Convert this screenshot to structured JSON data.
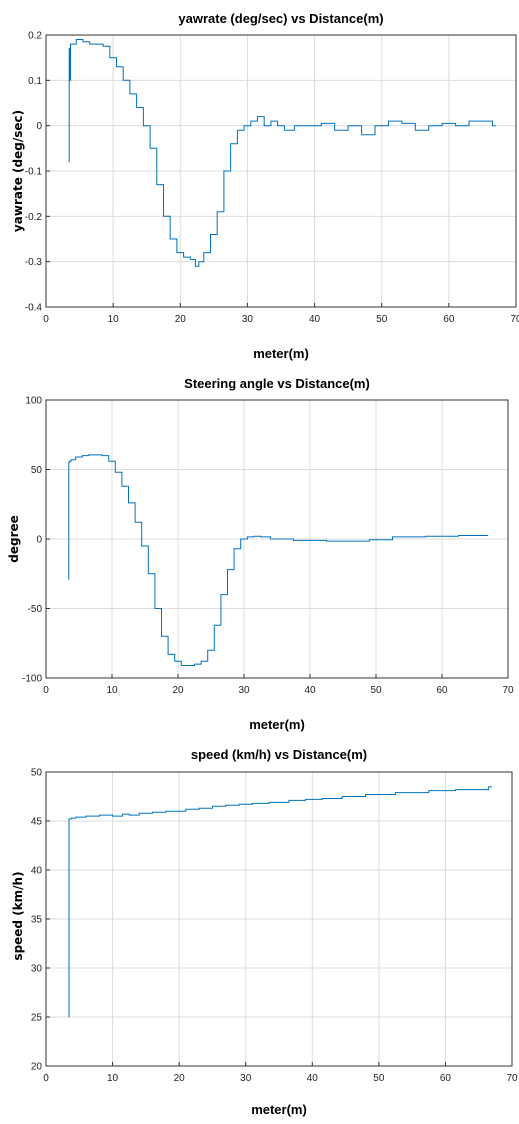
{
  "chart_data": [
    {
      "type": "line",
      "title": "yawrate (deg/sec) vs Distance(m)",
      "xlabel": "meter(m)",
      "ylabel": "yawrate (deg/sec)",
      "xlim": [
        0,
        70
      ],
      "ylim": [
        -0.4,
        0.2
      ],
      "xticks": [
        0,
        10,
        20,
        30,
        40,
        50,
        60,
        70
      ],
      "yticks": [
        -0.4,
        -0.3,
        -0.2,
        -0.1,
        0,
        0.1,
        0.2
      ],
      "grid": true,
      "color": "#0072BD",
      "series": [
        {
          "x": [
            3.4,
            3.5,
            3.6,
            3.7,
            4.0,
            5.0,
            6.0,
            7.0,
            8.0,
            9.0,
            10.0,
            11.0,
            12.0,
            13.0,
            14.0,
            15.0,
            16.0,
            17.0,
            18.0,
            19.0,
            20.0,
            21.0,
            22.0,
            22.5,
            23.0,
            24.0,
            25.0,
            26.0,
            27.0,
            28.0,
            29.0,
            30.0,
            31.0,
            32.0,
            33.0,
            34.0,
            35.0,
            36.0,
            38.0,
            40.0,
            42.0,
            44.0,
            46.0,
            48.0,
            50.0,
            52.0,
            54.0,
            56.0,
            58.0,
            60.0,
            62.0,
            64.0,
            66.0,
            67.0
          ],
          "y": [
            -0.08,
            0.17,
            0.1,
            0.18,
            0.18,
            0.19,
            0.185,
            0.18,
            0.18,
            0.175,
            0.15,
            0.13,
            0.1,
            0.07,
            0.04,
            0.0,
            -0.05,
            -0.13,
            -0.2,
            -0.25,
            -0.28,
            -0.29,
            -0.295,
            -0.31,
            -0.3,
            -0.28,
            -0.24,
            -0.19,
            -0.1,
            -0.04,
            -0.01,
            0.0,
            0.01,
            0.02,
            0.0,
            0.01,
            0.0,
            -0.01,
            0.0,
            0.0,
            0.005,
            -0.01,
            0.0,
            -0.02,
            0.0,
            0.01,
            0.005,
            -0.01,
            0.0,
            0.005,
            0.0,
            0.01,
            0.01,
            0.0
          ]
        }
      ]
    },
    {
      "type": "line",
      "title": "Steering angle vs Distance(m)",
      "xlabel": "meter(m)",
      "ylabel": "degree",
      "xlim": [
        0,
        70
      ],
      "ylim": [
        -100,
        100
      ],
      "xticks": [
        0,
        10,
        20,
        30,
        40,
        50,
        60,
        70
      ],
      "yticks": [
        -100,
        -50,
        0,
        50,
        100
      ],
      "grid": true,
      "color": "#0072BD",
      "series": [
        {
          "x": [
            3.4,
            3.5,
            3.6,
            4.0,
            5.0,
            6.0,
            7.0,
            8.0,
            9.0,
            10.0,
            11.0,
            12.0,
            13.0,
            14.0,
            15.0,
            16.0,
            17.0,
            18.0,
            19.0,
            20.0,
            21.0,
            22.0,
            23.0,
            24.0,
            25.0,
            26.0,
            27.0,
            28.0,
            29.0,
            30.0,
            31.0,
            32.0,
            33.0,
            35.0,
            40.0,
            45.0,
            48.0,
            50.0,
            55.0,
            60.0,
            65.0,
            67.0
          ],
          "y": [
            -29,
            55,
            56,
            57,
            59,
            60,
            60.5,
            60.5,
            60,
            56,
            48,
            38,
            26,
            12,
            -5,
            -25,
            -50,
            -70,
            -83,
            -88,
            -91,
            -91,
            -90,
            -88,
            -80,
            -62,
            -40,
            -22,
            -7,
            0,
            1.5,
            2,
            1.5,
            0,
            -1,
            -1.5,
            -1.5,
            -0.5,
            1.5,
            2,
            2.5,
            2.5
          ]
        }
      ]
    },
    {
      "type": "line",
      "title": "speed (km/h) vs Distance(m)",
      "xlabel": "meter(m)",
      "ylabel": "speed (km/h)",
      "xlim": [
        0,
        70
      ],
      "ylim": [
        20,
        50
      ],
      "xticks": [
        0,
        10,
        20,
        30,
        40,
        50,
        60,
        70
      ],
      "yticks": [
        20,
        25,
        30,
        35,
        40,
        45,
        50
      ],
      "grid": true,
      "color": "#0072BD",
      "series": [
        {
          "x": [
            3.4,
            3.5,
            4.0,
            5.0,
            7.0,
            9.0,
            11.0,
            12.0,
            13.0,
            15.0,
            17.0,
            19.0,
            20.0,
            22.0,
            24.0,
            26.0,
            28.0,
            30.0,
            32.0,
            35.0,
            38.0,
            40.0,
            43.0,
            46.0,
            50.0,
            55.0,
            60.0,
            63.0,
            66.0,
            67.0
          ],
          "y": [
            25,
            45.2,
            45.3,
            45.4,
            45.5,
            45.6,
            45.5,
            45.7,
            45.6,
            45.8,
            45.9,
            46.0,
            46.0,
            46.2,
            46.3,
            46.5,
            46.6,
            46.7,
            46.8,
            46.9,
            47.1,
            47.2,
            47.3,
            47.5,
            47.7,
            47.9,
            48.1,
            48.2,
            48.2,
            48.5
          ]
        }
      ]
    }
  ]
}
